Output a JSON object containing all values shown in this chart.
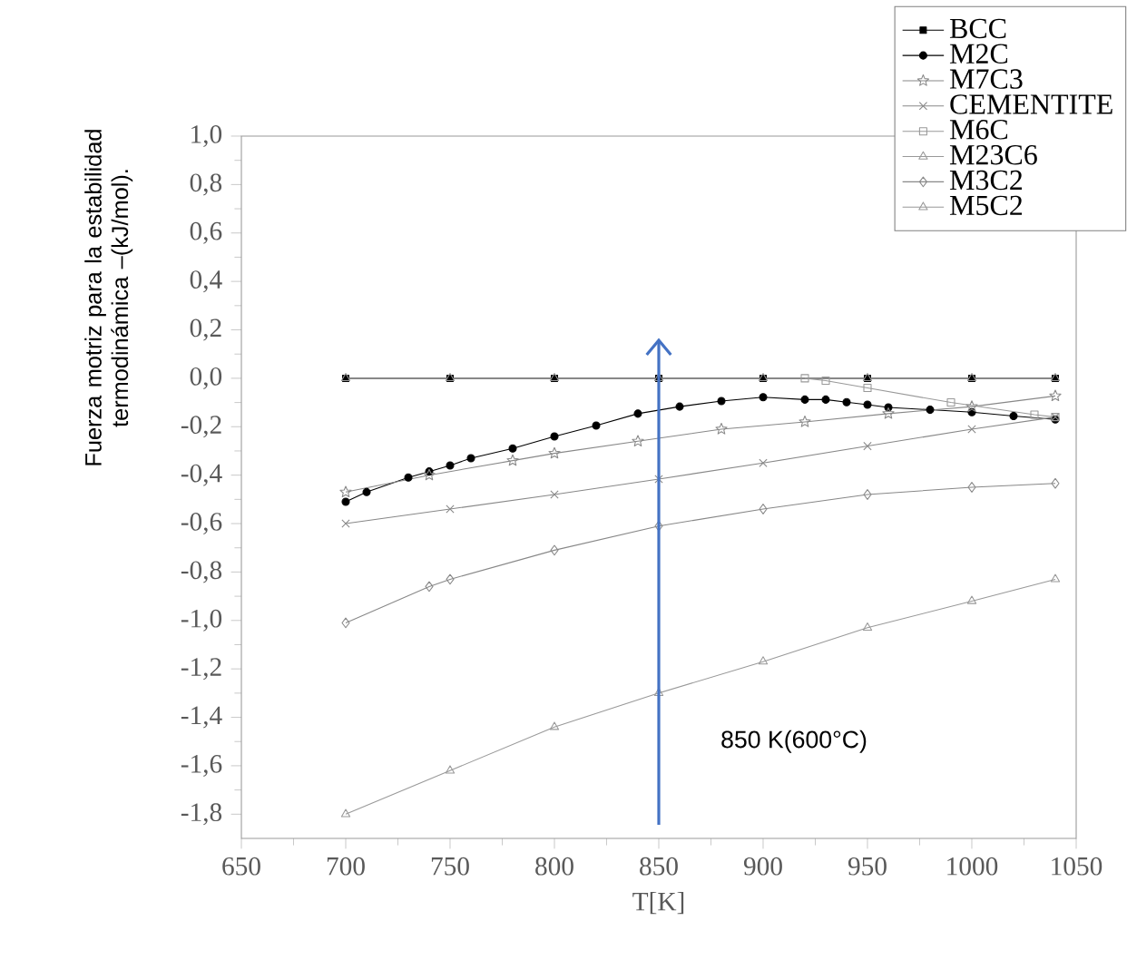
{
  "chart_data": {
    "type": "line",
    "xlabel": "T[K]",
    "ylabel": "Fuerza motriz para la estabilidad termodinámica –(kJ/mol).",
    "xlim": [
      650,
      1050
    ],
    "ylim": [
      -1.9,
      1.0
    ],
    "xticks": [
      650,
      700,
      750,
      800,
      850,
      900,
      950,
      1000,
      1050
    ],
    "yticks": [
      {
        "value": 1.0,
        "label": "1,0"
      },
      {
        "value": 0.8,
        "label": "0,8"
      },
      {
        "value": 0.6,
        "label": "0,6"
      },
      {
        "value": 0.4,
        "label": "0,4"
      },
      {
        "value": 0.2,
        "label": "0,2"
      },
      {
        "value": 0.0,
        "label": "0,0"
      },
      {
        "value": -0.2,
        "label": "-0,2"
      },
      {
        "value": -0.4,
        "label": "-0,4"
      },
      {
        "value": -0.6,
        "label": "-0,6"
      },
      {
        "value": -0.8,
        "label": "-0,8"
      },
      {
        "value": -1.0,
        "label": "-1,0"
      },
      {
        "value": -1.2,
        "label": "-1,2"
      },
      {
        "value": -1.4,
        "label": "-1,4"
      },
      {
        "value": -1.6,
        "label": "-1,6"
      },
      {
        "value": -1.8,
        "label": "-1,8"
      }
    ],
    "grid": false,
    "legend": "top right",
    "series": [
      {
        "name": "BCC",
        "color": "#000000",
        "marker": "square",
        "x": [
          700,
          750,
          800,
          850,
          900,
          950,
          1000,
          1040
        ],
        "values": [
          0,
          0,
          0,
          0,
          0,
          0,
          0,
          0
        ]
      },
      {
        "name": "M2C",
        "color": "#000000",
        "marker": "circle",
        "x": [
          700,
          710,
          730,
          740,
          750,
          760,
          780,
          800,
          820,
          840,
          860,
          880,
          900,
          920,
          930,
          940,
          950,
          960,
          980,
          1000,
          1020,
          1040
        ],
        "values": [
          -0.51,
          -0.47,
          -0.41,
          -0.385,
          -0.36,
          -0.33,
          -0.29,
          -0.24,
          -0.195,
          -0.146,
          -0.117,
          -0.094,
          -0.078,
          -0.088,
          -0.088,
          -0.099,
          -0.109,
          -0.12,
          -0.13,
          -0.14,
          -0.156,
          -0.17
        ]
      },
      {
        "name": "M7C3",
        "color": "#888888",
        "marker": "star",
        "x": [
          700,
          740,
          780,
          800,
          840,
          880,
          920,
          960,
          1000,
          1040
        ],
        "values": [
          -0.47,
          -0.4,
          -0.34,
          -0.31,
          -0.26,
          -0.21,
          -0.18,
          -0.146,
          -0.117,
          -0.073
        ]
      },
      {
        "name": "CEMENTITE",
        "color": "#888888",
        "marker": "cross",
        "x": [
          700,
          750,
          800,
          850,
          900,
          950,
          1000,
          1040
        ],
        "values": [
          -0.6,
          -0.54,
          -0.48,
          -0.416,
          -0.35,
          -0.28,
          -0.21,
          -0.16
        ]
      },
      {
        "name": "M6C",
        "color": "#999999",
        "marker": "square_open",
        "x": [
          920,
          930,
          950,
          990,
          1030,
          1040
        ],
        "values": [
          0,
          -0.01,
          -0.04,
          -0.1,
          -0.15,
          -0.16
        ]
      },
      {
        "name": "M23C6",
        "color": "#999999",
        "marker": "triangle_left",
        "x": [
          700,
          750,
          800,
          850,
          900,
          950,
          1000,
          1040
        ],
        "values": [
          0,
          0,
          0,
          0,
          0,
          0,
          0,
          0
        ]
      },
      {
        "name": "M3C2",
        "color": "#888888",
        "marker": "diamond",
        "x": [
          700,
          740,
          750,
          800,
          850,
          900,
          950,
          1000,
          1040
        ],
        "values": [
          -1.01,
          -0.86,
          -0.83,
          -0.71,
          -0.61,
          -0.54,
          -0.48,
          -0.45,
          -0.434
        ]
      },
      {
        "name": "M5C2",
        "color": "#999999",
        "marker": "triangle",
        "x": [
          700,
          750,
          800,
          850,
          900,
          950,
          1000,
          1040
        ],
        "values": [
          -1.8,
          -1.62,
          -1.44,
          -1.3,
          -1.17,
          -1.03,
          -0.92,
          -0.83
        ]
      }
    ],
    "ref_lines": [
      {
        "axis": "x",
        "value": 850,
        "label": "850 K(600°C)",
        "color": "#4472c4"
      }
    ]
  }
}
